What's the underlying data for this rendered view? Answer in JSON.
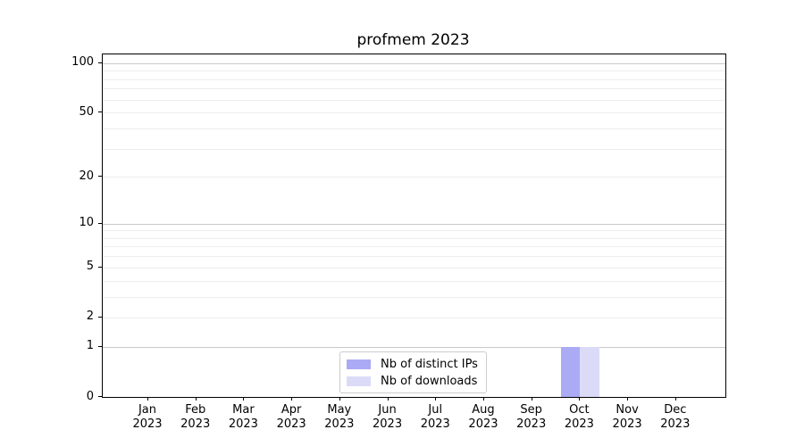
{
  "title": "profmem 2023",
  "colors": {
    "background": "#ffffff",
    "axis": "#000000",
    "text": "#000000",
    "grid_major": "#c9c9c9",
    "grid_minor": "#ededed",
    "legend_border": "#cccccc",
    "bar_distinct_ips": "#aaaaf5",
    "bar_downloads": "#dbdbf8"
  },
  "chart_data": {
    "type": "bar",
    "title": "profmem 2023",
    "categories": [
      "Jan",
      "Feb",
      "Mar",
      "Apr",
      "May",
      "Jun",
      "Jul",
      "Aug",
      "Sep",
      "Oct",
      "Nov",
      "Dec"
    ],
    "category_year": "2023",
    "series": [
      {
        "name": "Nb of distinct IPs",
        "color": "#aaaaf5",
        "values": [
          0,
          0,
          0,
          0,
          0,
          0,
          0,
          0,
          0,
          1,
          0,
          0
        ]
      },
      {
        "name": "Nb of downloads",
        "color": "#dbdbf8",
        "values": [
          0,
          0,
          0,
          0,
          0,
          0,
          0,
          0,
          0,
          1,
          0,
          0
        ]
      }
    ],
    "xlabel": "",
    "ylabel": "",
    "yscale": "log1p",
    "ylim": [
      0,
      113
    ],
    "yticks": [
      0,
      1,
      2,
      5,
      10,
      20,
      50,
      100
    ],
    "gridlines_major": [
      1,
      10,
      100
    ],
    "gridlines_minor": [
      2,
      3,
      4,
      5,
      6,
      7,
      8,
      9,
      20,
      30,
      40,
      50,
      60,
      70,
      80,
      90
    ],
    "grid": true,
    "legend_position": "inside lower center"
  }
}
